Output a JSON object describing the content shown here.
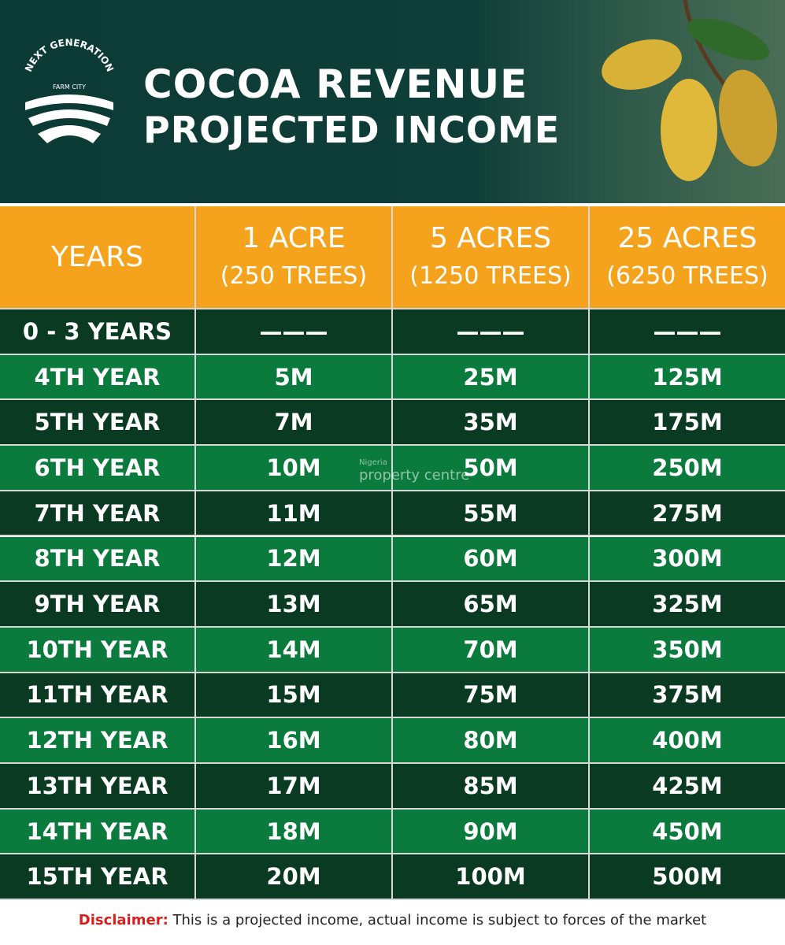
{
  "header": {
    "logo": {
      "top": "NEXT GENERATION",
      "bottom": "FARM CITY"
    },
    "title": "COCOA REVENUE",
    "subtitle": "PROJECTED INCOME"
  },
  "watermark": {
    "small": "Nigeria",
    "large": "property centre"
  },
  "table": {
    "columns": [
      [
        "YEARS"
      ],
      [
        "1 ACRE",
        "(250 TREES)"
      ],
      [
        "5 ACRES",
        "(1250 TREES)"
      ],
      [
        "25 ACRES",
        "(6250 TREES)"
      ]
    ],
    "rows": [
      [
        "0 - 3 YEARS",
        "———",
        "———",
        "———"
      ],
      [
        "4TH YEAR",
        "5M",
        "25M",
        "125M"
      ],
      [
        "5TH YEAR",
        "7M",
        "35M",
        "175M"
      ],
      [
        "6TH YEAR",
        "10M",
        "50M",
        "250M"
      ],
      [
        "7TH YEAR",
        "11M",
        "55M",
        "275M"
      ],
      [
        "8TH YEAR",
        "12M",
        "60M",
        "300M"
      ],
      [
        "9TH YEAR",
        "13M",
        "65M",
        "325M"
      ],
      [
        "10TH YEAR",
        "14M",
        "70M",
        "350M"
      ],
      [
        "11TH YEAR",
        "15M",
        "75M",
        "375M"
      ],
      [
        "12TH YEAR",
        "16M",
        "80M",
        "400M"
      ],
      [
        "13TH YEAR",
        "17M",
        "85M",
        "425M"
      ],
      [
        "14TH YEAR",
        "18M",
        "90M",
        "450M"
      ],
      [
        "15TH YEAR",
        "20M",
        "100M",
        "500M"
      ]
    ]
  },
  "disclaimer": {
    "label": "Disclaimer:",
    "text": "This is a projected income, actual income is subject to forces of the market"
  }
}
